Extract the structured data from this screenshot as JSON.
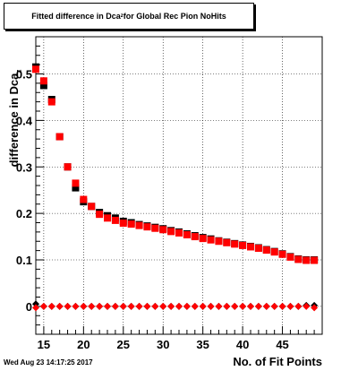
{
  "chart_data": {
    "type": "scatter",
    "title": "Fitted difference in Dca",
    "title_sub": "z",
    "title_suffix": " for Global Rec Pion NoHits",
    "ylabel": "difference in Dca",
    "ylabel_sub": "z",
    "xlabel": "No. of Fit Points",
    "xlim": [
      14,
      50
    ],
    "ylim": [
      -0.06,
      0.58
    ],
    "x_ticks": [
      15,
      20,
      25,
      30,
      35,
      40,
      45
    ],
    "y_ticks": [
      0,
      0.1,
      0.2,
      0.3,
      0.4,
      0.5
    ],
    "y_tick_labels": [
      "0",
      "0.1",
      "0.2",
      "0.3",
      "0.4",
      "0.5"
    ],
    "grid": true,
    "series": [
      {
        "color": "#000000",
        "marker": "square",
        "x": [
          14,
          15,
          16,
          17,
          18,
          19,
          20,
          21,
          22,
          23,
          24,
          25,
          26,
          27,
          28,
          29,
          30,
          31,
          32,
          33,
          34,
          35,
          36,
          37,
          38,
          39,
          40,
          41,
          42,
          43,
          44,
          45,
          46,
          47,
          48,
          49
        ],
        "y": [
          0.515,
          0.475,
          0.445,
          0.365,
          0.3,
          0.255,
          0.225,
          0.215,
          0.202,
          0.195,
          0.19,
          0.183,
          0.18,
          0.176,
          0.173,
          0.17,
          0.167,
          0.163,
          0.16,
          0.156,
          0.152,
          0.148,
          0.145,
          0.141,
          0.138,
          0.135,
          0.132,
          0.129,
          0.126,
          0.122,
          0.118,
          0.113,
          0.107,
          0.102,
          0.1,
          0.1
        ]
      },
      {
        "color": "#ff0000",
        "marker": "square",
        "x": [
          14,
          15,
          16,
          17,
          18,
          19,
          20,
          21,
          22,
          23,
          24,
          25,
          26,
          27,
          28,
          29,
          30,
          31,
          32,
          33,
          34,
          35,
          36,
          37,
          38,
          39,
          40,
          41,
          42,
          43,
          44,
          45,
          46,
          47,
          48,
          49
        ],
        "y": [
          0.51,
          0.485,
          0.44,
          0.365,
          0.3,
          0.265,
          0.23,
          0.215,
          0.198,
          0.19,
          0.185,
          0.179,
          0.177,
          0.174,
          0.171,
          0.168,
          0.165,
          0.161,
          0.158,
          0.154,
          0.15,
          0.146,
          0.143,
          0.14,
          0.137,
          0.134,
          0.131,
          0.128,
          0.125,
          0.121,
          0.117,
          0.112,
          0.106,
          0.101,
          0.099,
          0.099
        ]
      },
      {
        "color": "#000000",
        "marker": "diamond",
        "x": [
          14,
          15,
          16,
          17,
          18,
          19,
          20,
          21,
          22,
          23,
          24,
          25,
          26,
          27,
          28,
          29,
          30,
          31,
          32,
          33,
          34,
          35,
          36,
          37,
          38,
          39,
          40,
          41,
          42,
          43,
          44,
          45,
          46,
          47,
          48,
          49
        ],
        "y": [
          0.005,
          0,
          0,
          0,
          0,
          0,
          0,
          0,
          0,
          0,
          0,
          0,
          0,
          0,
          0,
          0,
          0,
          0,
          0,
          0,
          0,
          0,
          0,
          0,
          0,
          0,
          0,
          0,
          0,
          0,
          0,
          0,
          0,
          0,
          0.002,
          0.002
        ]
      },
      {
        "color": "#ff0000",
        "marker": "diamond",
        "x": [
          14,
          15,
          16,
          17,
          18,
          19,
          20,
          21,
          22,
          23,
          24,
          25,
          26,
          27,
          28,
          29,
          30,
          31,
          32,
          33,
          34,
          35,
          36,
          37,
          38,
          39,
          40,
          41,
          42,
          43,
          44,
          45,
          46,
          47,
          48,
          49
        ],
        "y": [
          -0.003,
          0,
          0,
          0,
          0,
          0,
          0,
          0,
          0,
          0,
          0,
          0,
          0,
          0,
          0,
          0,
          0,
          0,
          0,
          0,
          0,
          0,
          0,
          0,
          0,
          0,
          0,
          0,
          0,
          0,
          0,
          0,
          0,
          0,
          0,
          -0.003
        ]
      }
    ]
  },
  "footer": {
    "timestamp": "Wed Aug 23 14:17:25 2017"
  }
}
